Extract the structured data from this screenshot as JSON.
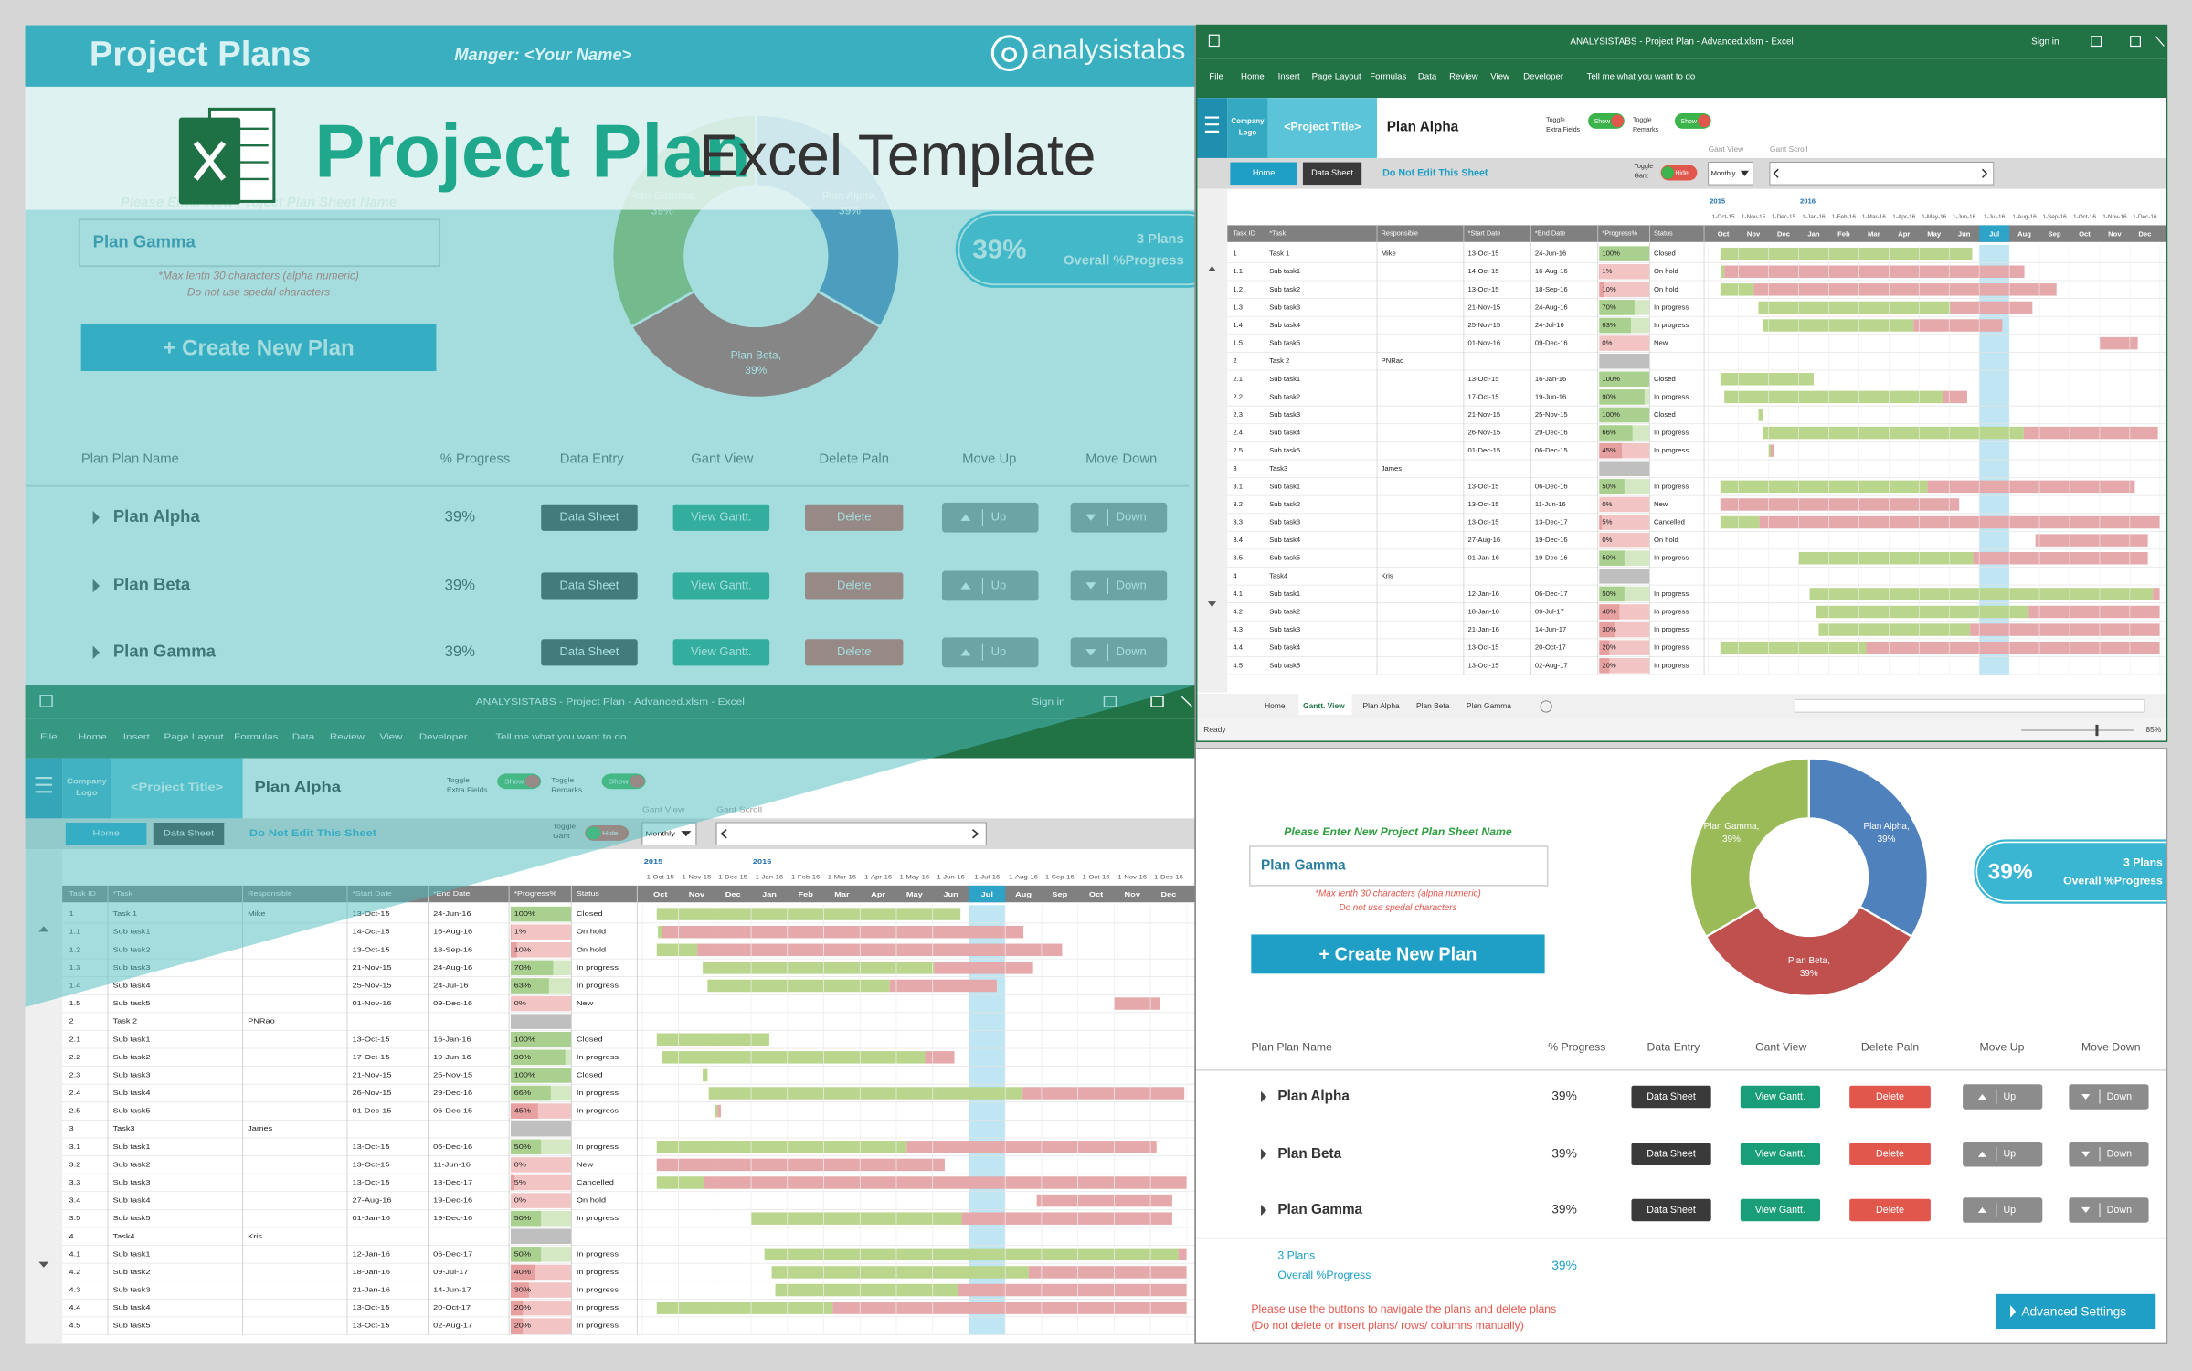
{
  "banner": {
    "title": "Project Plans",
    "manager": "Manger: <Your Name>",
    "brand": "analysistabs",
    "headline": "Project Plan",
    "subheadline": "Excel Template"
  },
  "dashboard": {
    "prompt": "Please Enter New Project Plan Sheet Name",
    "input": "Plan Gamma",
    "note1": "*Max lenth 30 characters (alpha numeric)",
    "note2": "Do not use spedal characters",
    "create": "+ Create New Plan",
    "summary": {
      "value": "39%",
      "line1": "3 Plans",
      "line2": "Overall %Progress"
    },
    "donut": {
      "type": "pie",
      "slices": [
        {
          "name": "Plan Alpha,",
          "value": 39,
          "value_label": "39%",
          "color": "#4f81bd"
        },
        {
          "name": "Plan Beta,",
          "value": 39,
          "value_label": "39%",
          "color": "#c0504d"
        },
        {
          "name": "Plan Gamma,",
          "value": 39,
          "value_label": "39%",
          "color": "#9bbb59"
        }
      ]
    },
    "columns": [
      "Plan Plan Name",
      "% Progress",
      "Data Entry",
      "Gant View",
      "Delete Paln",
      "Move Up",
      "Move Down"
    ],
    "rows": [
      {
        "name": "Plan Alpha",
        "progress": "39%",
        "data_entry": "Data Sheet",
        "gantt": "View Gantt.",
        "delete": "Delete",
        "up": "Up",
        "down": "Down"
      },
      {
        "name": "Plan Beta",
        "progress": "39%",
        "data_entry": "Data Sheet",
        "gantt": "View Gantt.",
        "delete": "Delete",
        "up": "Up",
        "down": "Down"
      },
      {
        "name": "Plan Gamma",
        "progress": "39%",
        "data_entry": "Data Sheet",
        "gantt": "View Gantt.",
        "delete": "Delete",
        "up": "Up",
        "down": "Down"
      }
    ],
    "footer": {
      "line1": "3 Plans",
      "line2": "Overall %Progress",
      "value": "39%"
    },
    "help1": "Please use the buttons to navigate the plans and delete plans",
    "help2": "(Do not delete or insert plans/ rows/ columns manually)",
    "settings": "Advanced Settings"
  },
  "excel": {
    "window_title": "ANALYSISTABS - Project Plan - Advanced.xlsm - Excel",
    "sign_in": "Sign in",
    "menu": [
      "File",
      "Home",
      "Insert",
      "Page Layout",
      "Formulas",
      "Data",
      "Review",
      "View",
      "Developer"
    ],
    "tell_me": "Tell me what you want to do",
    "company_logo": [
      "Company",
      "Logo"
    ],
    "project_title": "<Project Title>",
    "sheet_title": "Plan Alpha",
    "toggle_extra": [
      "Toggle",
      "Extra Fields"
    ],
    "toggle_remarks": [
      "Toggle",
      "Remarks"
    ],
    "toggle_gant": [
      "Toggle",
      "Gant"
    ],
    "show": "Show",
    "hide": "Hide",
    "home": "Home",
    "data_sheet": "Data Sheet",
    "warning": "Do Not Edit This Sheet",
    "gant_view": "Gant View",
    "gant_scroll": "Gant Scroll",
    "view_mode": "Monthly",
    "columns": [
      "Task ID",
      "*Task",
      "Responsible",
      "*Start Date",
      "*End Date",
      "*Progress%",
      "Status"
    ],
    "years": [
      "2015",
      "2016"
    ],
    "date_headers": [
      "1-Oct-15",
      "1-Nov-15",
      "1-Dec-15",
      "1-Jan-16",
      "1-Feb-16",
      "1-Mar-16",
      "1-Apr-16",
      "1-May-16",
      "1-Jun-16",
      "1-Jul-16",
      "1-Aug-16",
      "1-Sep-16",
      "1-Oct-16",
      "1-Nov-16",
      "1-Dec-16"
    ],
    "months": [
      "Oct",
      "Nov",
      "Dec",
      "Jan",
      "Feb",
      "Mar",
      "Apr",
      "May",
      "Jun",
      "Jul",
      "Aug",
      "Sep",
      "Oct",
      "Nov",
      "Dec"
    ],
    "rows": [
      [
        "1",
        "Task 1",
        "Mike",
        "13-Oct-15",
        "24-Jun-16",
        "100%",
        "Closed"
      ],
      [
        "1.1",
        "Sub task1",
        null,
        "14-Oct-15",
        "16-Aug-16",
        "1%",
        "On hold"
      ],
      [
        "1.2",
        "Sub task2",
        null,
        "13-Oct-15",
        "18-Sep-16",
        "10%",
        "On hold"
      ],
      [
        "1.3",
        "Sub task3",
        null,
        "21-Nov-15",
        "24-Aug-16",
        "70%",
        "In progress"
      ],
      [
        "1.4",
        "Sub task4",
        null,
        "25-Nov-15",
        "24-Jul-16",
        "63%",
        "In progress"
      ],
      [
        "1.5",
        "Sub task5",
        null,
        "01-Nov-16",
        "09-Dec-16",
        "0%",
        "New"
      ],
      [
        "2",
        "Task 2",
        "PNRao",
        null,
        null,
        null,
        null
      ],
      [
        "2.1",
        "Sub task1",
        null,
        "13-Oct-15",
        "16-Jan-16",
        "100%",
        "Closed"
      ],
      [
        "2.2",
        "Sub task2",
        null,
        "17-Oct-15",
        "19-Jun-16",
        "90%",
        "In progress"
      ],
      [
        "2.3",
        "Sub task3",
        null,
        "21-Nov-15",
        "25-Nov-15",
        "100%",
        "Closed"
      ],
      [
        "2.4",
        "Sub task4",
        null,
        "26-Nov-15",
        "29-Dec-16",
        "66%",
        "In progress"
      ],
      [
        "2.5",
        "Sub task5",
        null,
        "01-Dec-15",
        "06-Dec-15",
        "45%",
        "In progress"
      ],
      [
        "3",
        "Task3",
        "James",
        null,
        null,
        null,
        null
      ],
      [
        "3.1",
        "Sub task1",
        null,
        "13-Oct-15",
        "06-Dec-16",
        "50%",
        "In progress"
      ],
      [
        "3.2",
        "Sub task2",
        null,
        "13-Oct-15",
        "11-Jun-16",
        "0%",
        "New"
      ],
      [
        "3.3",
        "Sub task3",
        null,
        "13-Oct-15",
        "13-Dec-17",
        "5%",
        "Cancelled"
      ],
      [
        "3.4",
        "Sub task4",
        null,
        "27-Aug-16",
        "19-Dec-16",
        "0%",
        "On hold"
      ],
      [
        "3.5",
        "Sub task5",
        null,
        "01-Jan-16",
        "19-Dec-16",
        "50%",
        "In progress"
      ],
      [
        "4",
        "Task4",
        "Kris",
        null,
        null,
        null,
        null
      ],
      [
        "4.1",
        "Sub task1",
        null,
        "12-Jan-16",
        "06-Dec-17",
        "50%",
        "In progress"
      ],
      [
        "4.2",
        "Sub task2",
        null,
        "18-Jan-16",
        "09-Jul-17",
        "40%",
        "In progress"
      ],
      [
        "4.3",
        "Sub task3",
        null,
        "21-Jan-16",
        "14-Jun-17",
        "30%",
        "In progress"
      ],
      [
        "4.4",
        "Sub task4",
        null,
        "13-Oct-15",
        "20-Oct-17",
        "20%",
        "In progress"
      ],
      [
        "4.5",
        "Sub task5",
        null,
        "13-Oct-15",
        "02-Aug-17",
        "20%",
        "In progress"
      ]
    ],
    "tabs": [
      "Home",
      "Gantt. View",
      "Plan Alpha",
      "Plan Beta",
      "Plan Gamma"
    ],
    "status": "Ready",
    "zoom": "85%"
  }
}
